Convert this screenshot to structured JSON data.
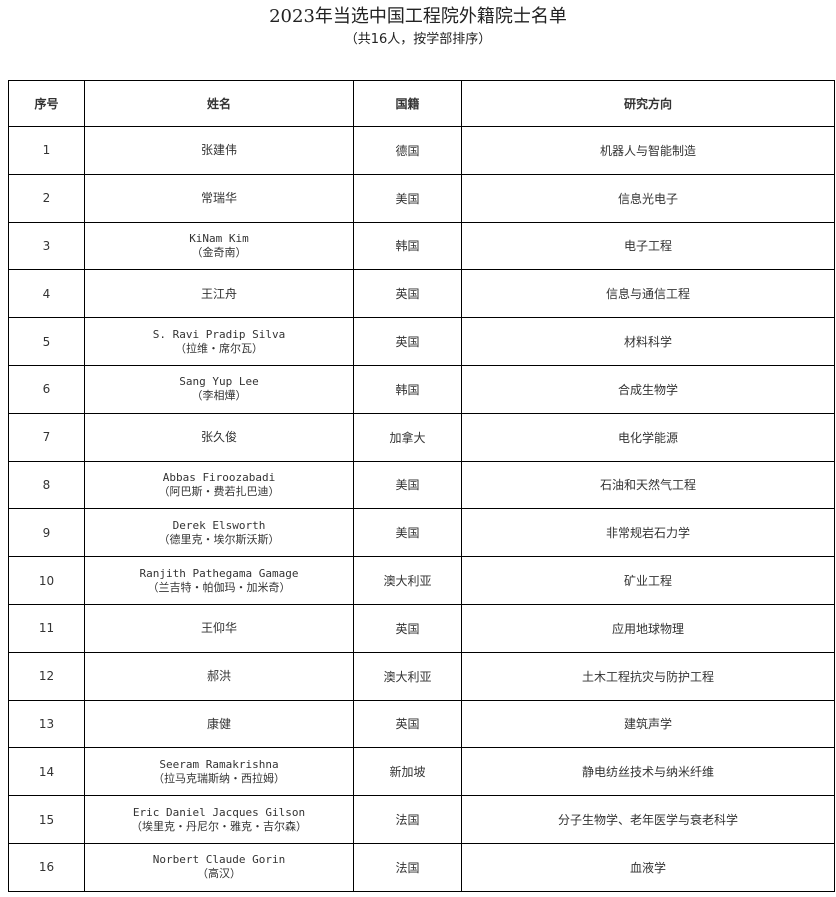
{
  "title": "2023年当选中国工程院外籍院士名单",
  "subtitle": "（共16人，按学部排序）",
  "headers": [
    "序号",
    "姓名",
    "国籍",
    "研究方向"
  ],
  "rows": [
    {
      "no": "1",
      "name": "张建伟",
      "cn": "",
      "country": "德国",
      "field": "机器人与智能制造"
    },
    {
      "no": "2",
      "name": "常瑞华",
      "cn": "",
      "country": "美国",
      "field": "信息光电子"
    },
    {
      "no": "3",
      "name": "KiNam Kim",
      "cn": "（金奇南）",
      "country": "韩国",
      "field": "电子工程"
    },
    {
      "no": "4",
      "name": "王江舟",
      "cn": "",
      "country": "英国",
      "field": "信息与通信工程"
    },
    {
      "no": "5",
      "name": "S. Ravi Pradip Silva",
      "cn": "（拉维・席尔瓦）",
      "country": "英国",
      "field": "材料科学"
    },
    {
      "no": "6",
      "name": "Sang Yup Lee",
      "cn": "（李相燁）",
      "country": "韩国",
      "field": "合成生物学"
    },
    {
      "no": "7",
      "name": "张久俊",
      "cn": "",
      "country": "加拿大",
      "field": "电化学能源"
    },
    {
      "no": "8",
      "name": "Abbas Firoozabadi",
      "cn": "（阿巴斯・费若扎巴迪）",
      "country": "美国",
      "field": "石油和天然气工程"
    },
    {
      "no": "9",
      "name": "Derek Elsworth",
      "cn": "（德里克・埃尔斯沃斯）",
      "country": "美国",
      "field": "非常规岩石力学"
    },
    {
      "no": "10",
      "name": "Ranjith Pathegama Gamage",
      "cn": "（兰吉特・帕伽玛・加米奇）",
      "country": "澳大利亚",
      "field": "矿业工程"
    },
    {
      "no": "11",
      "name": "王仰华",
      "cn": "",
      "country": "英国",
      "field": "应用地球物理"
    },
    {
      "no": "12",
      "name": "郝洪",
      "cn": "",
      "country": "澳大利亚",
      "field": "土木工程抗灾与防护工程"
    },
    {
      "no": "13",
      "name": "康健",
      "cn": "",
      "country": "英国",
      "field": "建筑声学"
    },
    {
      "no": "14",
      "name": "Seeram Ramakrishna",
      "cn": "（拉马克瑞斯纳・西拉姆）",
      "country": "新加坡",
      "field": "静电纺丝技术与纳米纤维"
    },
    {
      "no": "15",
      "name": "Eric Daniel Jacques Gilson",
      "cn": "（埃里克・丹尼尔・雅克・吉尔森）",
      "country": "法国",
      "field": "分子生物学、老年医学与衰老科学"
    },
    {
      "no": "16",
      "name": "Norbert Claude Gorin",
      "cn": "（高汉）",
      "country": "法国",
      "field": "血液学"
    }
  ]
}
